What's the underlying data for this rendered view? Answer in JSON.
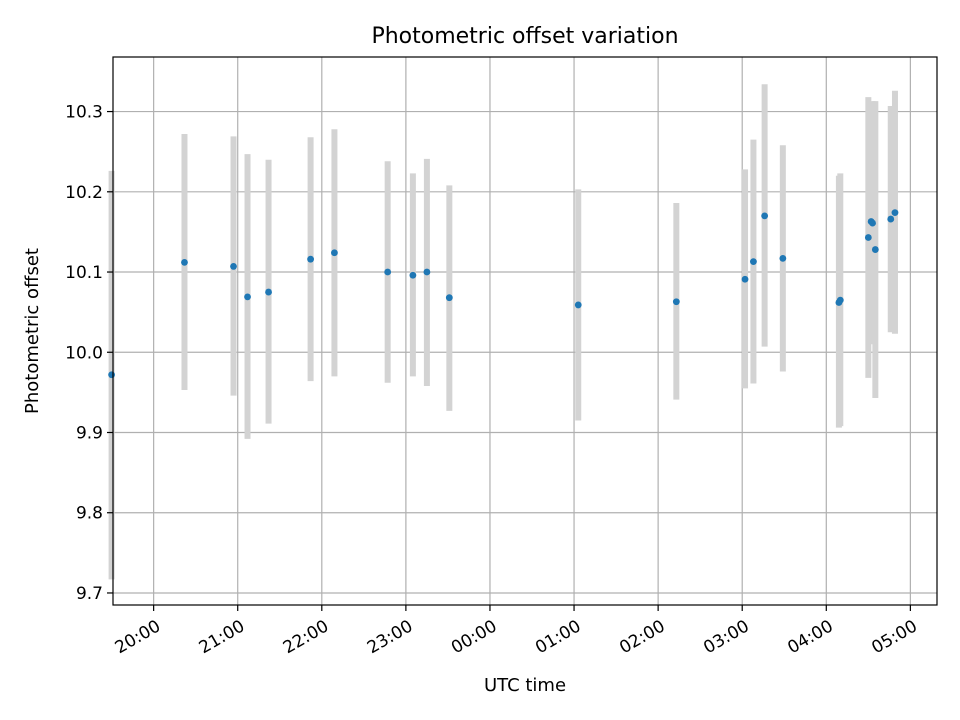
{
  "chart_data": {
    "type": "scatter",
    "title": "Photometric offset variation",
    "xlabel": "UTC time",
    "ylabel": "Photometric offset",
    "xlim": [
      "19:31",
      "05:19"
    ],
    "ylim": [
      9.685,
      10.368
    ],
    "grid": true,
    "x_ticks": [
      "20:00",
      "21:00",
      "22:00",
      "23:00",
      "00:00",
      "01:00",
      "02:00",
      "03:00",
      "04:00",
      "05:00"
    ],
    "y_ticks": [
      9.7,
      9.8,
      9.9,
      10.0,
      10.1,
      10.2,
      10.3
    ],
    "y_tick_labels": [
      "9.7",
      "9.8",
      "9.9",
      "10.0",
      "10.1",
      "10.2",
      "10.3"
    ],
    "colors": {
      "points": "#1f77b4",
      "errorbars": "#d3d3d3",
      "grid": "#b0b0b0"
    },
    "points": [
      {
        "x": "19:30",
        "y": 9.972,
        "err_low": 9.717,
        "err_high": 10.226
      },
      {
        "x": "20:22",
        "y": 10.112,
        "err_low": 9.953,
        "err_high": 10.272
      },
      {
        "x": "20:57",
        "y": 10.107,
        "err_low": 9.946,
        "err_high": 10.269
      },
      {
        "x": "21:07",
        "y": 10.069,
        "err_low": 9.892,
        "err_high": 10.247
      },
      {
        "x": "21:22",
        "y": 10.075,
        "err_low": 9.911,
        "err_high": 10.24
      },
      {
        "x": "21:52",
        "y": 10.116,
        "err_low": 9.964,
        "err_high": 10.268
      },
      {
        "x": "22:09",
        "y": 10.124,
        "err_low": 9.97,
        "err_high": 10.278
      },
      {
        "x": "22:47",
        "y": 10.1,
        "err_low": 9.962,
        "err_high": 10.238
      },
      {
        "x": "23:05",
        "y": 10.096,
        "err_low": 9.97,
        "err_high": 10.223
      },
      {
        "x": "23:15",
        "y": 10.1,
        "err_low": 9.958,
        "err_high": 10.241
      },
      {
        "x": "23:31",
        "y": 10.068,
        "err_low": 9.927,
        "err_high": 10.208
      },
      {
        "x": "01:03",
        "y": 10.059,
        "err_low": 9.915,
        "err_high": 10.203
      },
      {
        "x": "02:13",
        "y": 10.063,
        "err_low": 9.941,
        "err_high": 10.186
      },
      {
        "x": "03:02",
        "y": 10.091,
        "err_low": 9.955,
        "err_high": 10.228
      },
      {
        "x": "03:08",
        "y": 10.113,
        "err_low": 9.961,
        "err_high": 10.265
      },
      {
        "x": "03:16",
        "y": 10.17,
        "err_low": 10.007,
        "err_high": 10.334
      },
      {
        "x": "03:29",
        "y": 10.117,
        "err_low": 9.976,
        "err_high": 10.258
      },
      {
        "x": "04:09",
        "y": 10.062,
        "err_low": 9.906,
        "err_high": 10.22
      },
      {
        "x": "04:10",
        "y": 10.065,
        "err_low": 9.908,
        "err_high": 10.223
      },
      {
        "x": "04:30",
        "y": 10.143,
        "err_low": 9.968,
        "err_high": 10.318
      },
      {
        "x": "04:32",
        "y": 10.163,
        "err_low": 10.034,
        "err_high": 10.292
      },
      {
        "x": "04:33",
        "y": 10.161,
        "err_low": 10.01,
        "err_high": 10.313
      },
      {
        "x": "04:35",
        "y": 10.128,
        "err_low": 9.943,
        "err_high": 10.313
      },
      {
        "x": "04:46",
        "y": 10.166,
        "err_low": 10.025,
        "err_high": 10.307
      },
      {
        "x": "04:49",
        "y": 10.174,
        "err_low": 10.023,
        "err_high": 10.326
      }
    ]
  }
}
